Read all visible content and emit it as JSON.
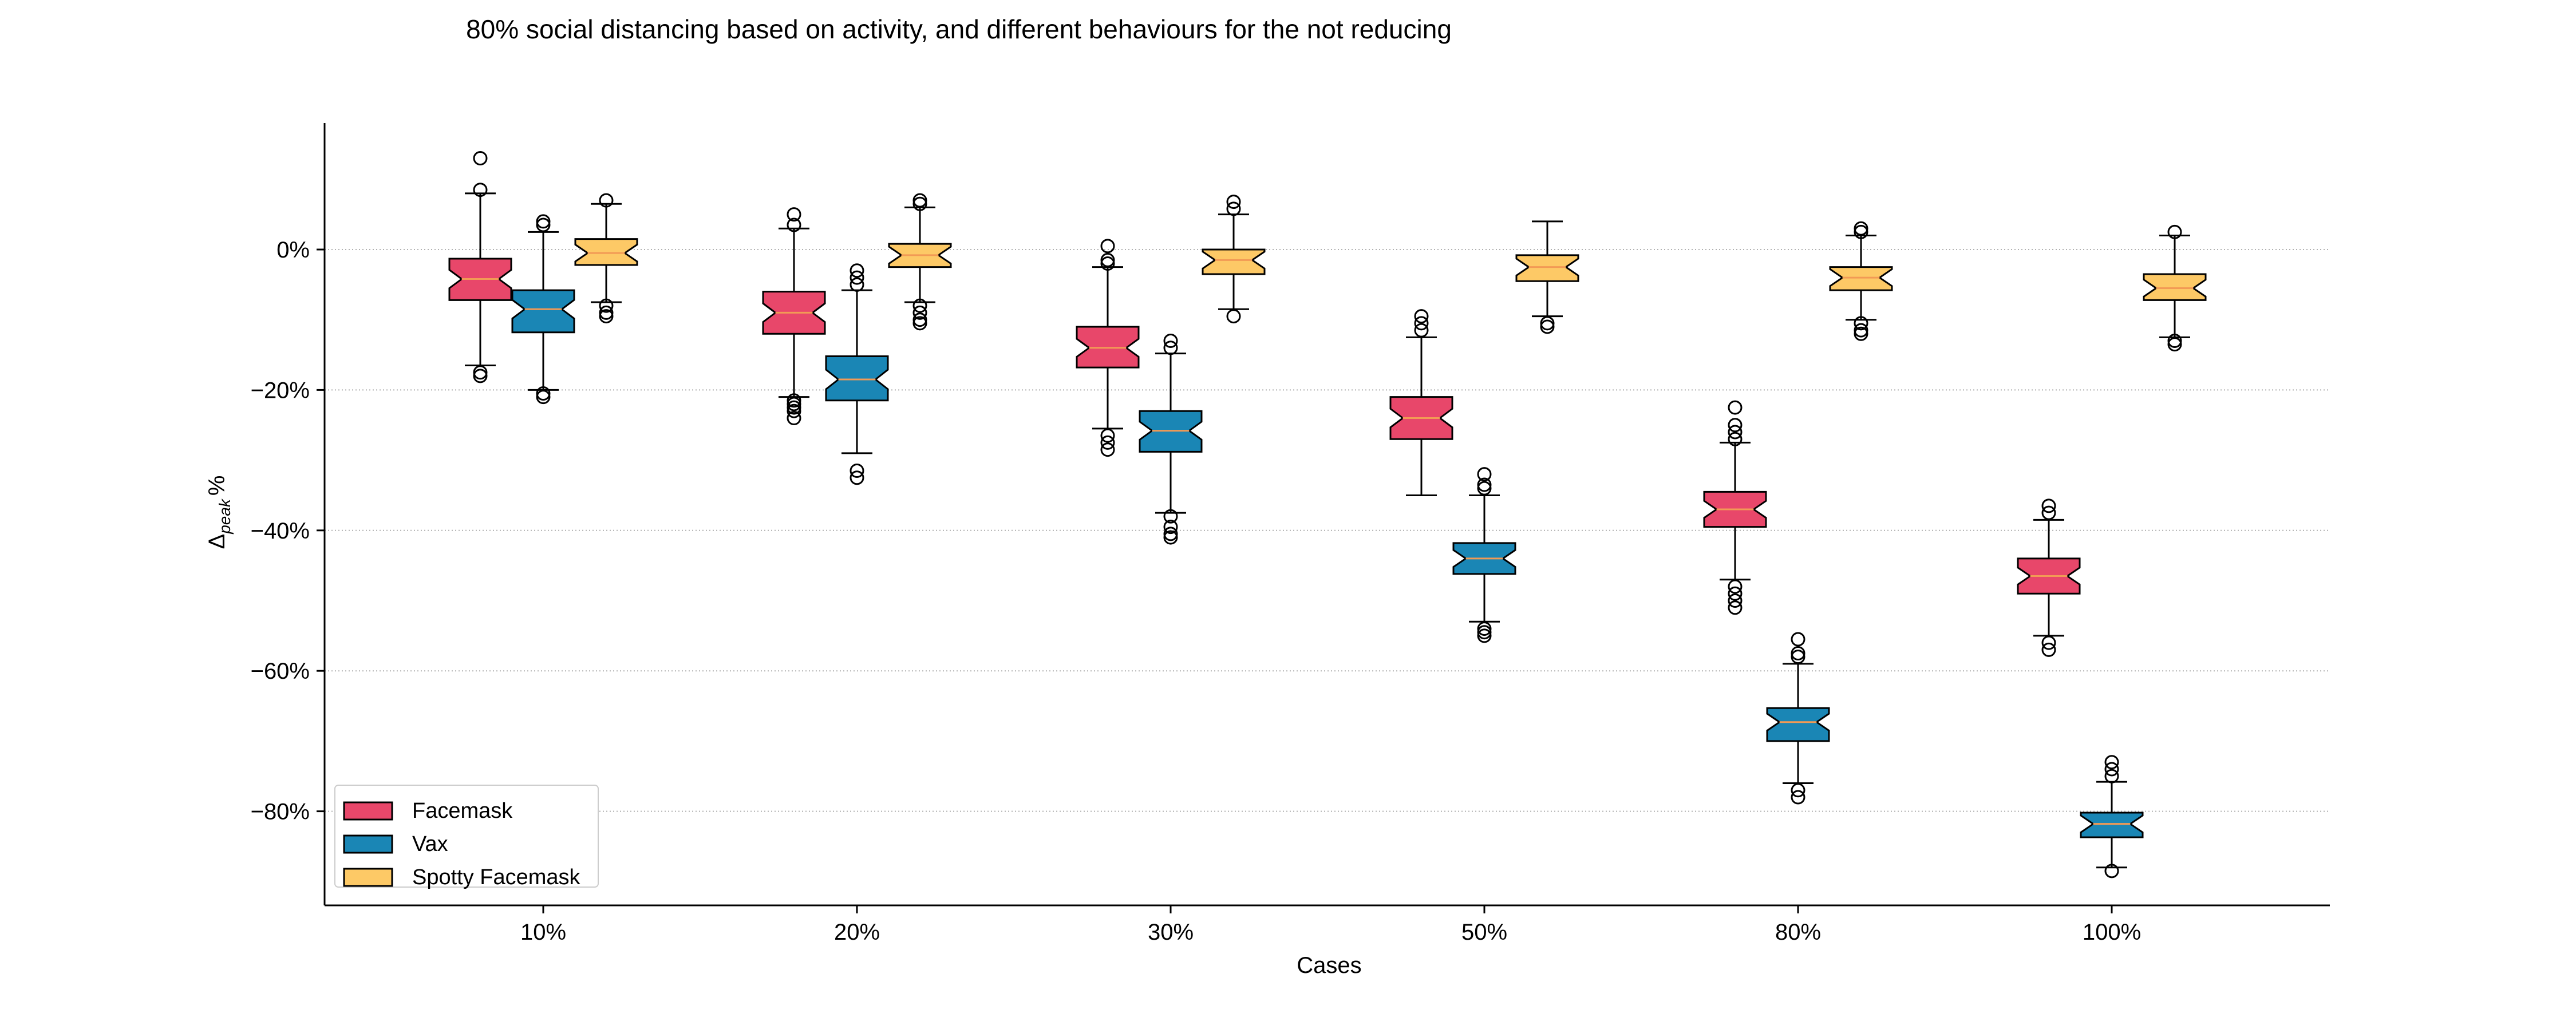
{
  "chart_data": {
    "type": "box",
    "title": "80% social distancing based on activity, and different behaviours for the not reducing",
    "xlabel": "Cases",
    "ylabel_main": "Δ",
    "ylabel_sub": "peak",
    "ylabel_suffix": "%",
    "categories": [
      "10%",
      "20%",
      "30%",
      "50%",
      "80%",
      "100%"
    ],
    "ylim": [
      -93,
      18
    ],
    "yticks": [
      0,
      -20,
      -40,
      -60,
      -80
    ],
    "ytick_labels": [
      "0%",
      "−20%",
      "−40%",
      "−60%",
      "−80%"
    ],
    "grid": "horizontal dotted",
    "legend_position": "bottom-left",
    "notched": true,
    "series": [
      {
        "name": "Facemask",
        "color": "#e8476a",
        "median_color": "#f29a55",
        "boxes": [
          {
            "whislo": -16.5,
            "q1": -7.2,
            "med": -4.2,
            "q3": -1.3,
            "whishi": 8.0,
            "fliers": [
              -17.5,
              -18.0,
              8.5,
              13.0
            ]
          },
          {
            "whislo": -21.0,
            "q1": -12.0,
            "med": -9.0,
            "q3": -6.0,
            "whishi": 3.0,
            "fliers": [
              -21.5,
              -22.0,
              -22.5,
              -23.0,
              -24.0,
              3.5,
              5.0
            ]
          },
          {
            "whislo": -25.5,
            "q1": -16.8,
            "med": -14.0,
            "q3": -11.0,
            "whishi": -2.5,
            "fliers": [
              -26.5,
              -27.5,
              -28.5,
              -2.0,
              -1.5,
              0.5
            ]
          },
          {
            "whislo": -35.0,
            "q1": -27.0,
            "med": -24.0,
            "q3": -21.0,
            "whishi": -12.5,
            "fliers": [
              -11.5,
              -10.5,
              -9.5
            ]
          },
          {
            "whislo": -47.0,
            "q1": -39.5,
            "med": -37.0,
            "q3": -34.5,
            "whishi": -27.5,
            "fliers": [
              -48.0,
              -49.0,
              -50.0,
              -51.0,
              -27.0,
              -26.0,
              -25.0,
              -22.5
            ]
          },
          {
            "whislo": -55.0,
            "q1": -49.0,
            "med": -46.5,
            "q3": -44.0,
            "whishi": -38.5,
            "fliers": [
              -56.0,
              -57.0,
              -37.5,
              -36.5
            ]
          }
        ]
      },
      {
        "name": "Vax",
        "color": "#1a86b5",
        "median_color": "#f29a55",
        "boxes": [
          {
            "whislo": -20.0,
            "q1": -11.8,
            "med": -8.5,
            "q3": -5.8,
            "whishi": 2.5,
            "fliers": [
              -20.5,
              -21.0,
              3.5,
              4.0
            ]
          },
          {
            "whislo": -29.0,
            "q1": -21.5,
            "med": -18.5,
            "q3": -15.2,
            "whishi": -5.8,
            "fliers": [
              -31.5,
              -32.5,
              -5.0,
              -4.0,
              -3.0
            ]
          },
          {
            "whislo": -37.5,
            "q1": -28.8,
            "med": -25.8,
            "q3": -23.0,
            "whishi": -14.8,
            "fliers": [
              -38.0,
              -39.5,
              -40.5,
              -41.0,
              -14.0,
              -13.0
            ]
          },
          {
            "whislo": -53.0,
            "q1": -46.2,
            "med": -44.0,
            "q3": -41.8,
            "whishi": -35.0,
            "fliers": [
              -54.0,
              -54.5,
              -55.0,
              -34.0,
              -33.5,
              -32.0
            ]
          },
          {
            "whislo": -76.0,
            "q1": -70.0,
            "med": -67.3,
            "q3": -65.3,
            "whishi": -59.0,
            "fliers": [
              -77.0,
              -78.0,
              -58.0,
              -57.5,
              -55.5
            ]
          },
          {
            "whislo": -88.0,
            "q1": -83.7,
            "med": -81.8,
            "q3": -80.2,
            "whishi": -75.8,
            "fliers": [
              -88.5,
              -75.0,
              -74.0,
              -73.0
            ]
          }
        ]
      },
      {
        "name": "Spotty Facemask",
        "color": "#fdc966",
        "median_color": "#f29a55",
        "boxes": [
          {
            "whislo": -7.5,
            "q1": -2.2,
            "med": -0.5,
            "q3": 1.5,
            "whishi": 6.5,
            "fliers": [
              -8.0,
              -9.0,
              -9.5,
              7.0
            ]
          },
          {
            "whislo": -7.5,
            "q1": -2.5,
            "med": -0.8,
            "q3": 0.8,
            "whishi": 6.0,
            "fliers": [
              -8.0,
              -9.0,
              -10.0,
              -10.5,
              6.5,
              7.0
            ]
          },
          {
            "whislo": -8.5,
            "q1": -3.5,
            "med": -1.5,
            "q3": 0.0,
            "whishi": 5.0,
            "fliers": [
              -9.5,
              5.8,
              6.8
            ]
          },
          {
            "whislo": -9.5,
            "q1": -4.5,
            "med": -2.5,
            "q3": -0.8,
            "whishi": 4.0,
            "fliers": [
              -10.5,
              -11.0
            ]
          },
          {
            "whislo": -10.0,
            "q1": -5.8,
            "med": -4.0,
            "q3": -2.5,
            "whishi": 2.0,
            "fliers": [
              -10.5,
              -11.5,
              -12.0,
              2.5,
              3.0
            ]
          },
          {
            "whislo": -12.5,
            "q1": -7.2,
            "med": -5.5,
            "q3": -3.5,
            "whishi": 2.0,
            "fliers": [
              -13.0,
              -13.5,
              2.5
            ]
          }
        ]
      }
    ]
  }
}
